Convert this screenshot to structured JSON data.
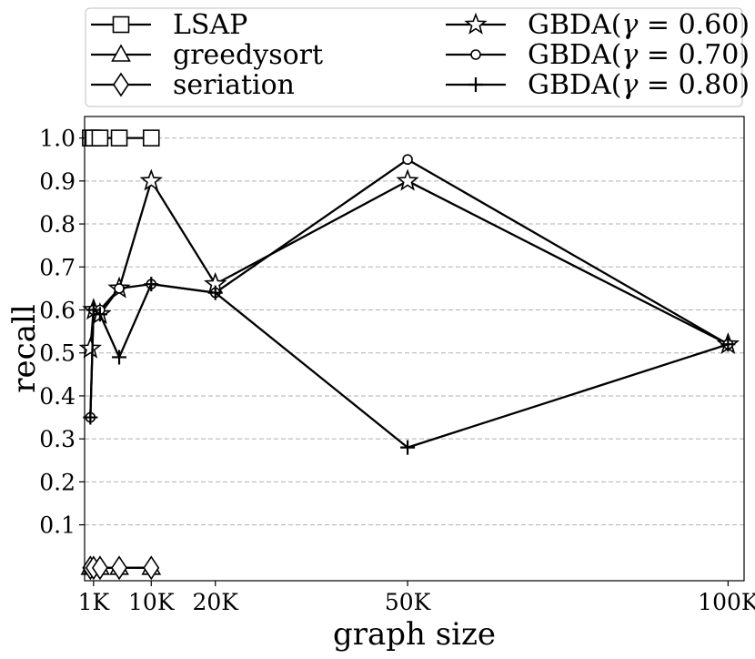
{
  "chart_data": {
    "type": "line",
    "xlabel": "graph size",
    "ylabel": "recall",
    "xlim": [
      -400,
      102500
    ],
    "ylim": [
      -0.03,
      1.05
    ],
    "xticks": [
      1000,
      10000,
      20000,
      50000,
      100000
    ],
    "xtick_labels": [
      "1K",
      "10K",
      "20K",
      "50K",
      "100K"
    ],
    "yticks": [
      0.1,
      0.2,
      0.3,
      0.4,
      0.5,
      0.6,
      0.7,
      0.8,
      0.9,
      1.0
    ],
    "ytick_labels": [
      "0.1",
      "0.2",
      "0.3",
      "0.4",
      "0.5",
      "0.6",
      "0.7",
      "0.8",
      "0.9",
      "1.0"
    ],
    "grid": "y-dashed",
    "legend_position": "top",
    "series": [
      {
        "name": "LSAP",
        "marker": "square",
        "x": [
          500,
          1000,
          2000,
          5000,
          10000
        ],
        "y": [
          1.0,
          1.0,
          1.0,
          1.0,
          1.0
        ]
      },
      {
        "name": "greedysort",
        "marker": "triangle",
        "x": [
          500,
          1000,
          2000,
          5000,
          10000
        ],
        "y": [
          0.0,
          0.0,
          0.0,
          0.0,
          0.0
        ]
      },
      {
        "name": "seriation",
        "marker": "diamond",
        "x": [
          500,
          1000,
          2000,
          5000,
          10000
        ],
        "y": [
          0.0,
          0.0,
          0.0,
          0.0,
          0.0
        ]
      },
      {
        "name": "GBDA(γ = 0.60)",
        "name_prefix": "GBDA(",
        "name_var": "γ",
        "name_suffix": " = 0.60)",
        "marker": "star",
        "x": [
          500,
          1000,
          2000,
          5000,
          10000,
          20000,
          50000,
          100000
        ],
        "y": [
          0.51,
          0.6,
          0.59,
          0.65,
          0.9,
          0.66,
          0.9,
          0.52
        ]
      },
      {
        "name": "GBDA(γ = 0.70)",
        "name_prefix": "GBDA(",
        "name_var": "γ",
        "name_suffix": " = 0.70)",
        "marker": "circle",
        "x": [
          500,
          1000,
          2000,
          5000,
          10000,
          20000,
          50000,
          100000
        ],
        "y": [
          0.35,
          0.6,
          0.6,
          0.65,
          0.66,
          0.64,
          0.95,
          0.52
        ]
      },
      {
        "name": "GBDA(γ = 0.80)",
        "name_prefix": "GBDA(",
        "name_var": "γ",
        "name_suffix": " = 0.80)",
        "marker": "plus",
        "x": [
          500,
          1000,
          2000,
          5000,
          10000,
          20000,
          50000,
          100000
        ],
        "y": [
          0.35,
          0.6,
          0.59,
          0.49,
          0.66,
          0.64,
          0.28,
          0.52
        ]
      }
    ]
  }
}
